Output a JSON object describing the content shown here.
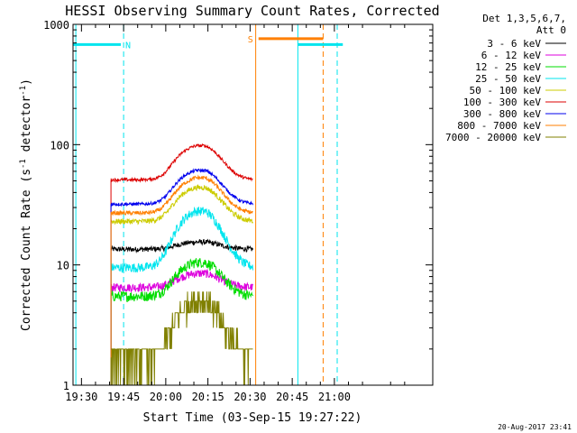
{
  "chart_data": {
    "type": "line",
    "title": "HESSI Observing Summary Count Rates, Corrected",
    "xlabel": "Start Time (03-Sep-15 19:27:22)",
    "ylabel_main": "Corrected Count Rate (s",
    "ylabel_sup1": "-1",
    "ylabel_mid": " detector",
    "ylabel_sup2": "-1",
    "ylabel_end": ")",
    "y_scale": "log",
    "ylim": [
      1,
      1000
    ],
    "xlim_min": [
      1167,
      1295
    ],
    "x_ticks": [
      {
        "v": 1170,
        "label": "19:30"
      },
      {
        "v": 1185,
        "label": "19:45"
      },
      {
        "v": 1200,
        "label": "20:00"
      },
      {
        "v": 1215,
        "label": "20:15"
      },
      {
        "v": 1230,
        "label": "20:30"
      },
      {
        "v": 1245,
        "label": "20:45"
      },
      {
        "v": 1260,
        "label": "21:00"
      }
    ],
    "y_ticks": [
      {
        "v": 1,
        "label": "1"
      },
      {
        "v": 10,
        "label": "10"
      },
      {
        "v": 100,
        "label": "100"
      },
      {
        "v": 1000,
        "label": "1000"
      }
    ],
    "legend_header": [
      "Det 1,3,5,6,7,",
      "Att 0"
    ],
    "legend_position": "right",
    "data_window": [
      1180.5,
      1231
    ],
    "series": [
      {
        "name": "3 - 6 keV",
        "color": "#000000",
        "base": 13.5,
        "peak": 15.5,
        "noise": 0.05
      },
      {
        "name": "6 - 12 keV",
        "color": "#dd00dd",
        "base": 6.5,
        "peak": 8.5,
        "noise": 0.08
      },
      {
        "name": "12 - 25 keV",
        "color": "#00dd00",
        "base": 5.5,
        "peak": 10.5,
        "noise": 0.1
      },
      {
        "name": "25 - 50 keV",
        "color": "#00e5ee",
        "base": 9.5,
        "peak": 28,
        "noise": 0.09
      },
      {
        "name": "50 - 100 keV",
        "color": "#cccc00",
        "base": 23,
        "peak": 44,
        "noise": 0.05
      },
      {
        "name": "100 - 300 keV",
        "color": "#dd0000",
        "base": 51,
        "peak": 98,
        "noise": 0.03
      },
      {
        "name": "300 - 800 keV",
        "color": "#0000ee",
        "base": 32,
        "peak": 61,
        "noise": 0.03
      },
      {
        "name": "800 - 7000 keV",
        "color": "#ff7f00",
        "base": 27,
        "peak": 53,
        "noise": 0.04
      },
      {
        "name": "7000 - 20000 keV",
        "color": "#808000",
        "base": 1.7,
        "peak": 5.0,
        "noise": 0.25
      }
    ],
    "night_flag": {
      "label": "N",
      "color": "#00e5ee",
      "level": 680,
      "segments": [
        [
          1167,
          1184
        ],
        [
          1247,
          1263
        ]
      ]
    },
    "saa_flag": {
      "label": "S",
      "color": "#ff7f00",
      "level": 760,
      "segments": [
        [
          1233,
          1256
        ]
      ]
    },
    "vlines_solid": [
      {
        "v": 1168,
        "color": "#00e5ee"
      },
      {
        "v": 1232,
        "color": "#ff7f00"
      },
      {
        "v": 1247,
        "color": "#00e5ee"
      }
    ],
    "vlines_dashed": [
      {
        "v": 1185,
        "color": "#00e5ee"
      },
      {
        "v": 1256,
        "color": "#ff7f00"
      },
      {
        "v": 1261,
        "color": "#00e5ee"
      }
    ]
  },
  "footer_timestamp": "20-Aug-2017 23:41"
}
